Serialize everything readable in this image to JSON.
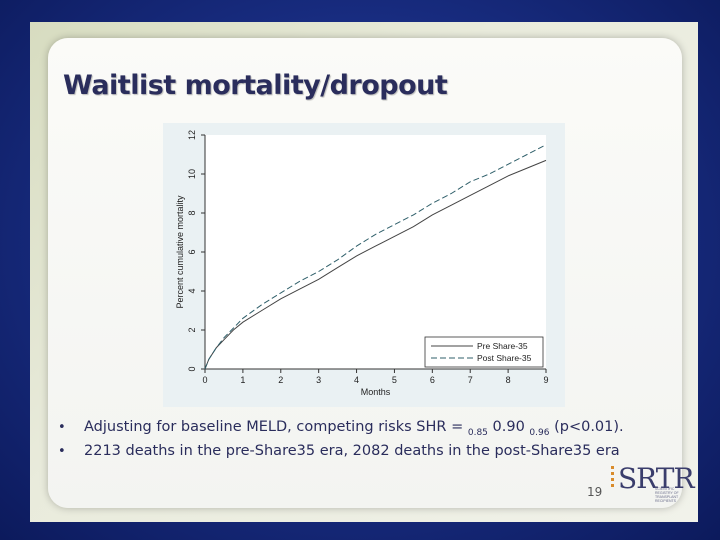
{
  "slide": {
    "title": "Waitlist mortality/dropout",
    "page_number": "19",
    "logo_text": "SRTR",
    "logo_subtext": "SCIENTIFIC REGISTRY OF TRANSPLANT RECIPIENTS"
  },
  "bullets": [
    {
      "marker": "•",
      "pre": "Adjusting for baseline MELD, competing risks SHR = ",
      "sub1": "0.85",
      "mid": " 0.90 ",
      "sub2": "0.96",
      "post": " (p<0.01)."
    },
    {
      "marker": "•",
      "text": "2213 deaths in the pre-Share35 era, 2082 deaths in the post-Share35 era"
    }
  ],
  "chart_data": {
    "type": "line",
    "title": "",
    "xlabel": "Months",
    "ylabel": "Percent cumulative mortality",
    "xlim": [
      0,
      9
    ],
    "ylim": [
      0,
      12
    ],
    "xticks": [
      "0",
      "1",
      "2",
      "3",
      "4",
      "5",
      "6",
      "7",
      "8",
      "9"
    ],
    "yticks": [
      "0",
      "2",
      "4",
      "6",
      "8",
      "10",
      "12"
    ],
    "legend_position": "bottom-right",
    "x": [
      0,
      0.1,
      0.3,
      0.5,
      0.75,
      1,
      1.5,
      2,
      2.5,
      3,
      3.5,
      4,
      4.5,
      5,
      5.5,
      6,
      6.5,
      7,
      7.5,
      8,
      8.5,
      9
    ],
    "series": [
      {
        "name": "Pre Share-35",
        "style": "solid",
        "color": "#444444",
        "values": [
          0,
          0.5,
          1.1,
          1.5,
          2.0,
          2.4,
          3.0,
          3.6,
          4.1,
          4.6,
          5.2,
          5.8,
          6.3,
          6.8,
          7.3,
          7.9,
          8.4,
          8.9,
          9.4,
          9.9,
          10.3,
          10.7
        ]
      },
      {
        "name": "Post Share-35",
        "style": "dashed",
        "color": "#2f5f6a",
        "values": [
          0,
          0.5,
          1.1,
          1.6,
          2.1,
          2.6,
          3.3,
          3.9,
          4.5,
          5.0,
          5.6,
          6.3,
          6.9,
          7.4,
          7.9,
          8.5,
          9.0,
          9.6,
          10.0,
          10.5,
          11.0,
          11.5
        ]
      }
    ]
  }
}
